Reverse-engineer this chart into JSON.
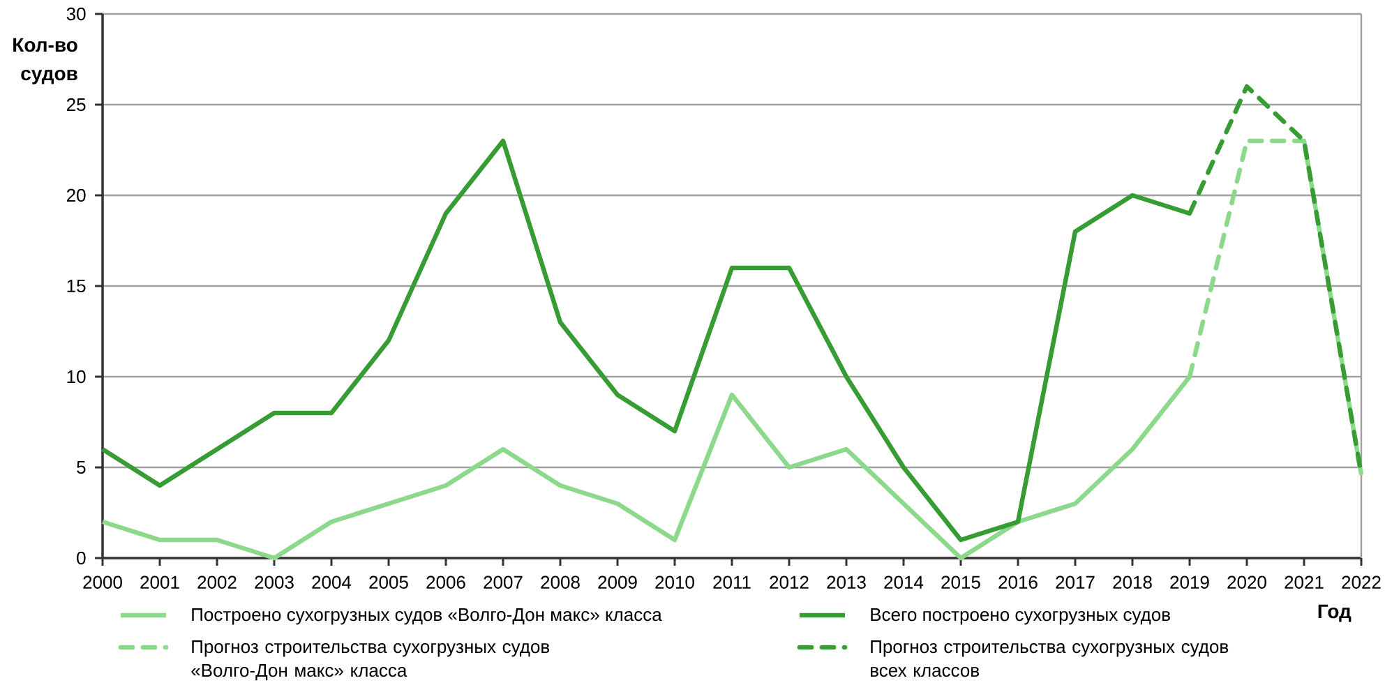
{
  "chart_data": {
    "type": "line",
    "ylabel": "Кол-во судов",
    "xlabel": "Год",
    "x": [
      2000,
      2001,
      2002,
      2003,
      2004,
      2005,
      2006,
      2007,
      2008,
      2009,
      2010,
      2011,
      2012,
      2013,
      2014,
      2015,
      2016,
      2017,
      2018,
      2019
    ],
    "series": [
      {
        "name": "Построено сухогрузных судов «Волго-Дон макс» класса",
        "color": "#8cd98c",
        "values": [
          2,
          1,
          1,
          0,
          2,
          3,
          4,
          6,
          4,
          3,
          1,
          9,
          5,
          6,
          3,
          0,
          2,
          3,
          6,
          10
        ]
      },
      {
        "name": "Всего построено сухогрузных судов",
        "color": "#389c34",
        "values": [
          6,
          4,
          6,
          8,
          8,
          12,
          19,
          23,
          13,
          9,
          7,
          16,
          16,
          10,
          5,
          1,
          2,
          18,
          20,
          19
        ]
      },
      {
        "name": "Прогноз строительства сухогрузных судов «Волго-Дон макс» класса",
        "color": "#8cd98c",
        "x": [
          2019,
          2020,
          2021,
          2022
        ],
        "values": [
          10,
          23,
          23,
          4.6
        ],
        "line_style": "dashed"
      },
      {
        "name": "Прогноз строительства сухогрузных судов всех классов",
        "color": "#389c34",
        "x": [
          2019,
          2020,
          2021,
          2022
        ],
        "values": [
          19,
          26,
          23,
          4.6
        ],
        "line_style": "dashed"
      }
    ],
    "xlim": [
      2000,
      2022
    ],
    "xticks": [
      2000,
      2001,
      2002,
      2003,
      2004,
      2005,
      2006,
      2007,
      2008,
      2009,
      2010,
      2011,
      2012,
      2013,
      2014,
      2015,
      2016,
      2017,
      2018,
      2019,
      2020,
      2021,
      2022
    ],
    "ylim": [
      0,
      30
    ],
    "yticks": [
      0,
      5,
      10,
      15,
      20,
      25,
      30
    ],
    "grid": "y",
    "legend": "bottom",
    "line_style": "solid"
  }
}
